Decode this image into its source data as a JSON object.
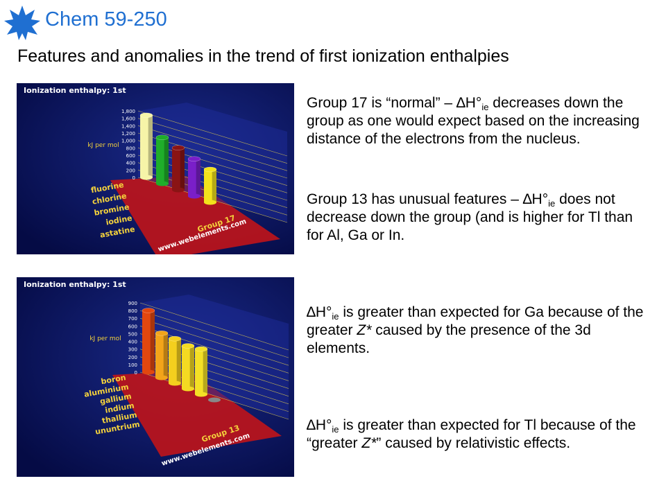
{
  "header": {
    "title": "Chem 59-250"
  },
  "subtitle": "Features and anomalies in the trend of first ionization enthalpies",
  "paragraphs": [
    [
      {
        "t": "Group 17 is “normal” – ∆H°"
      },
      {
        "sub": "ie"
      },
      {
        "t": " decreases down the group as one would expect based on the increasing distance of the electrons from the nucleus."
      }
    ],
    [
      {
        "t": "Group 13 has unusual features – ∆H°"
      },
      {
        "sub": "ie"
      },
      {
        "t": " does not decrease down the group (and is higher for Tl than for Al, Ga or In."
      }
    ],
    [
      {
        "t": "∆H°"
      },
      {
        "sub": "ie"
      },
      {
        "t": " is greater than expected for Ga because of the greater "
      },
      {
        "i": "Z*"
      },
      {
        "t": " caused by the presence of the 3d elements."
      }
    ],
    [
      {
        "t": "∆H°"
      },
      {
        "sub": "ie"
      },
      {
        "t": " is greater than expected for Tl because of the “greater "
      },
      {
        "i": "Z*"
      },
      {
        "t": "” caused by relativistic effects."
      }
    ]
  ],
  "figures": [
    {
      "type": "bar3d",
      "title": "Ionization enthalpy: 1st",
      "ylabel": "kJ per mol",
      "ylim": [
        0,
        1800
      ],
      "yticks": [
        0,
        200,
        400,
        600,
        800,
        {
          "value": 1000,
          "label": "1,000"
        },
        {
          "value": 1200,
          "label": "1,200"
        },
        {
          "value": 1400,
          "label": "1,400"
        },
        {
          "value": 1600,
          "label": "1,600"
        },
        {
          "value": 1800,
          "label": "1,800"
        }
      ],
      "categories": [
        "fluorine",
        "chlorine",
        "bromine",
        "iodine",
        "astatine"
      ],
      "values": [
        1681,
        1251,
        1140,
        1008,
        890
      ],
      "colors": [
        "#f6f4a8",
        "#1fae2a",
        "#8a1414",
        "#7a1fc9",
        "#f2e21c"
      ],
      "group_label": "Group 17",
      "source": "www.webelements.com"
    },
    {
      "type": "bar3d",
      "title": "Ionization enthalpy: 1st",
      "ylabel": "kJ per mol",
      "ylim": [
        0,
        900
      ],
      "yticks": [
        0,
        100,
        200,
        300,
        400,
        500,
        600,
        700,
        800,
        900
      ],
      "categories": [
        "boron",
        "aluminium",
        "gallium",
        "indium",
        "thallium",
        "ununtrium"
      ],
      "values": [
        801,
        578,
        579,
        558,
        589,
        null
      ],
      "colors": [
        "#e2470f",
        "#f3a41a",
        "#f4cf1e",
        "#f4da22",
        "#f4e026",
        "#888888"
      ],
      "group_label": "Group 13",
      "source": "www.webelements.com"
    }
  ]
}
